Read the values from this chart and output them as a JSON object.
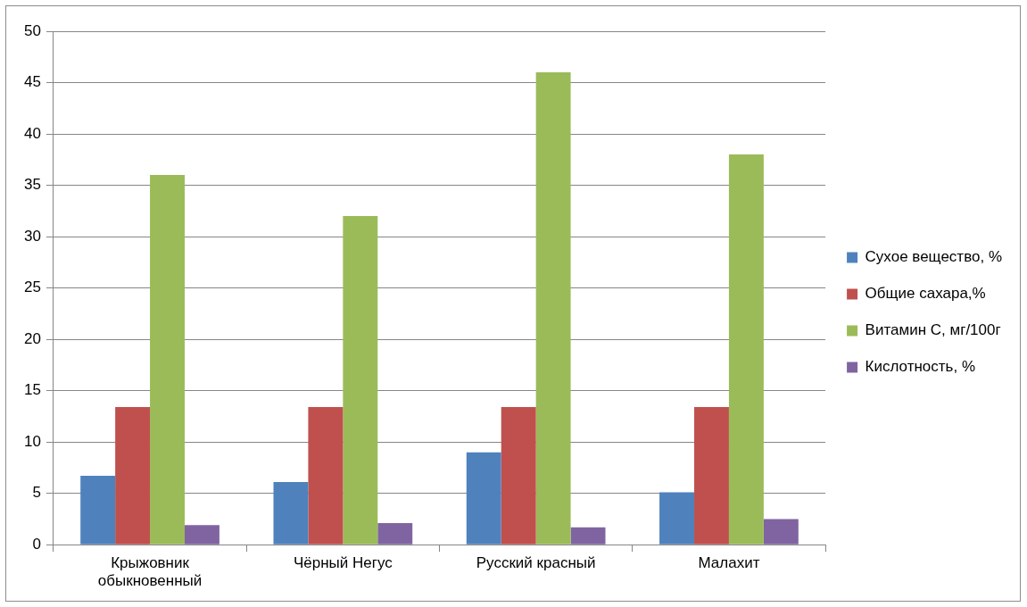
{
  "chart_data": {
    "type": "bar",
    "categories": [
      "Крыжовник обыкновенный",
      "Чёрный Негус",
      "Русский красный",
      "Малахит"
    ],
    "series": [
      {
        "name": "Сухое вещество, %",
        "color": "#4f81bd",
        "values": [
          6.7,
          6.1,
          9.0,
          5.1
        ]
      },
      {
        "name": "Общие сахара,%",
        "color": "#c0504d",
        "values": [
          13.4,
          13.4,
          13.4,
          13.4
        ]
      },
      {
        "name": "Витамин С, мг/100г",
        "color": "#9bbb59",
        "values": [
          36,
          32,
          46,
          38
        ]
      },
      {
        "name": "Кислотность, %",
        "color": "#8064a2",
        "values": [
          1.9,
          2.1,
          1.7,
          2.5
        ]
      }
    ],
    "ylim": [
      0,
      50
    ],
    "yticks": [
      0,
      5,
      10,
      15,
      20,
      25,
      30,
      35,
      40,
      45,
      50
    ],
    "grid": "y",
    "legend": "right"
  }
}
